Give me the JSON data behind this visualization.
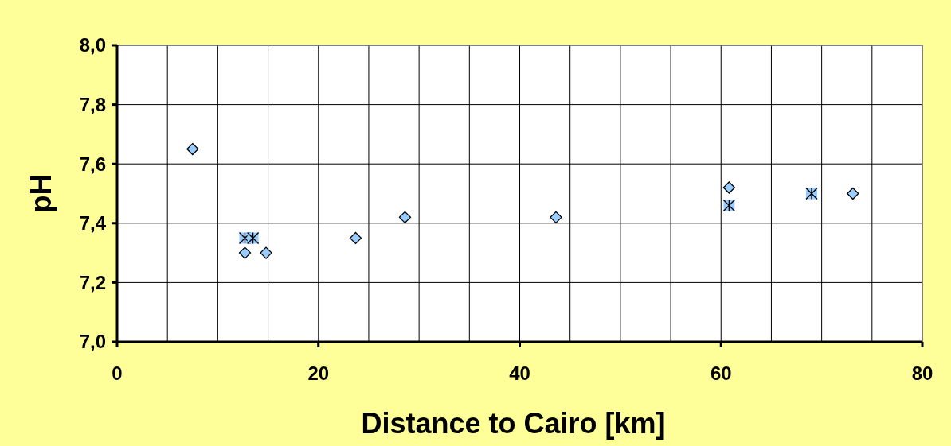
{
  "chart_data": {
    "type": "scatter",
    "xlabel": "Distance to Cairo [km]",
    "ylabel": "pH",
    "xlim": [
      0,
      80
    ],
    "ylim": [
      7.0,
      8.0
    ],
    "xticks": [
      0,
      {
        "value": 5,
        "label": null
      },
      {
        "value": 10,
        "label": null
      },
      {
        "value": 15,
        "label": null
      },
      20,
      {
        "value": 25,
        "label": null
      },
      {
        "value": 30,
        "label": null
      },
      {
        "value": 35,
        "label": null
      },
      40,
      {
        "value": 45,
        "label": null
      },
      {
        "value": 50,
        "label": null
      },
      {
        "value": 55,
        "label": null
      },
      60,
      {
        "value": 65,
        "label": null
      },
      {
        "value": 70,
        "label": null
      },
      {
        "value": 75,
        "label": null
      },
      80
    ],
    "yticks": [
      {
        "value": 7.0,
        "label": "7,0"
      },
      {
        "value": 7.2,
        "label": "7,2"
      },
      {
        "value": 7.4,
        "label": "7,4"
      },
      {
        "value": 7.6,
        "label": "7,6"
      },
      {
        "value": 7.8,
        "label": "7,8"
      },
      {
        "value": 8.0,
        "label": "8,0"
      }
    ],
    "grid": true,
    "series": [
      {
        "color": "#99ccff",
        "marker": "diamond",
        "x": [
          7.5,
          12.7,
          14.8,
          23.7,
          28.6,
          43.6,
          60.8,
          73.1
        ],
        "values": [
          7.65,
          7.3,
          7.3,
          7.35,
          7.42,
          7.42,
          7.52,
          7.5
        ]
      },
      {
        "color": "#99ccff",
        "marker": "square",
        "x": [
          12.7,
          13.5,
          60.8,
          69.0
        ],
        "values": [
          7.35,
          7.35,
          7.46,
          7.5
        ]
      }
    ]
  }
}
